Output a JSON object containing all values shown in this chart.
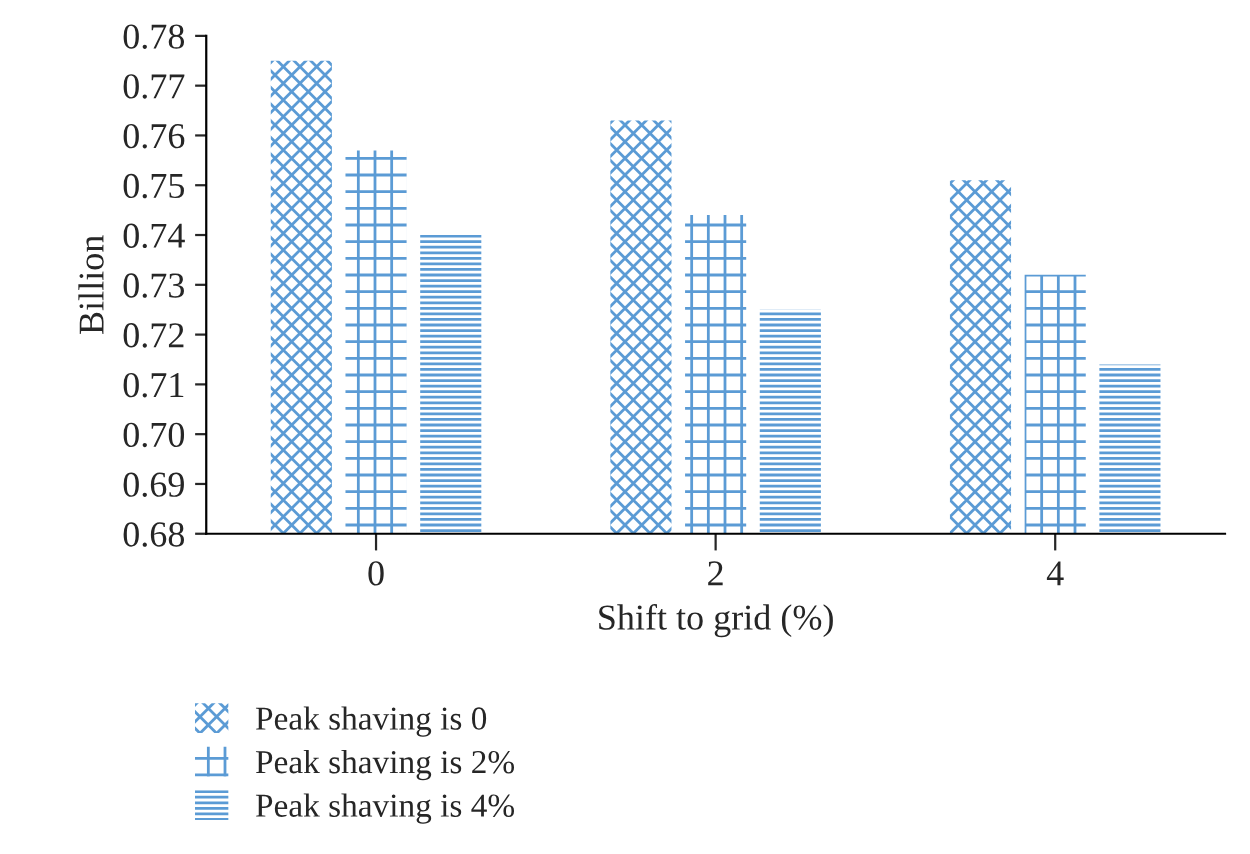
{
  "chart_data": {
    "type": "bar",
    "xlabel": "Shift to grid (%)",
    "ylabel": "Billion",
    "categories": [
      "0",
      "2",
      "4"
    ],
    "series": [
      {
        "name": "Peak shaving is 0",
        "color": "#5b9bd5",
        "values": [
          0.775,
          0.763,
          0.751
        ]
      },
      {
        "name": "Peak shaving is 2%",
        "color": "#5b9bd5",
        "values": [
          0.757,
          0.744,
          0.732
        ]
      },
      {
        "name": "Peak shaving is 4%",
        "color": "#5b9bd5",
        "values": [
          0.74,
          0.725,
          0.714
        ]
      }
    ],
    "ylim": [
      0.68,
      0.78
    ],
    "yticks": [
      {
        "value": 0.68,
        "label": "0.68"
      },
      {
        "value": 0.69,
        "label": "0.69"
      },
      {
        "value": 0.7,
        "label": "0.70"
      },
      {
        "value": 0.71,
        "label": "0.71"
      },
      {
        "value": 0.72,
        "label": "0.72"
      },
      {
        "value": 0.73,
        "label": "0.73"
      },
      {
        "value": 0.74,
        "label": "0.74"
      },
      {
        "value": 0.75,
        "label": "0.75"
      },
      {
        "value": 0.76,
        "label": "0.76"
      },
      {
        "value": 0.77,
        "label": "0.77"
      },
      {
        "value": 0.78,
        "label": "0.78"
      }
    ],
    "grid": false,
    "legend": "bottom"
  }
}
